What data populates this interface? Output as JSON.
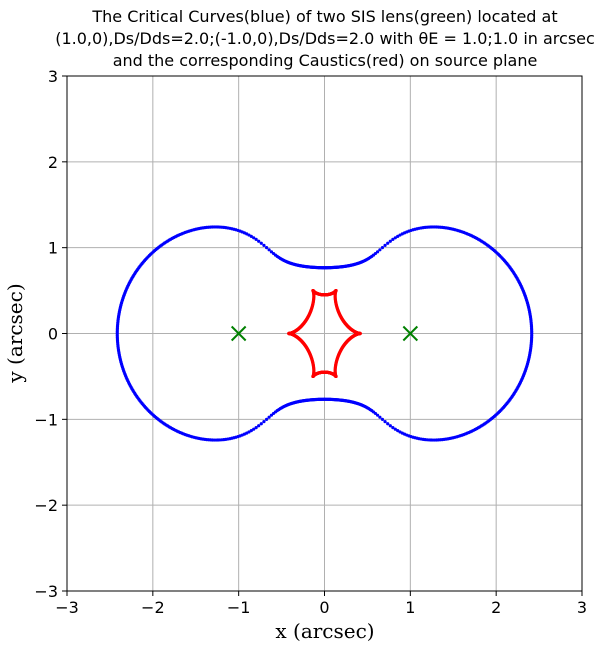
{
  "chart_data": {
    "type": "scatter",
    "title_lines": [
      "The Critical Curves(blue) of two SIS lens(green) located at",
      "(1.0,0),Ds/Dds=2.0;(-1.0,0),Ds/Dds=2.0 with θE = 1.0;1.0 in arcsec",
      "and the corresponding Caustics(red) on source plane"
    ],
    "xlabel": "x (arcsec)",
    "ylabel": "y (arcsec)",
    "xlim": [
      -3,
      3
    ],
    "ylim": [
      -3,
      3
    ],
    "xticks": [
      -3,
      -2,
      -1,
      0,
      1,
      2,
      3
    ],
    "yticks": [
      -3,
      -2,
      -1,
      0,
      1,
      2,
      3
    ],
    "xtick_labels": [
      "−3",
      "−2",
      "−1",
      "0",
      "1",
      "2",
      "3"
    ],
    "ytick_labels": [
      "−3",
      "−2",
      "−1",
      "0",
      "1",
      "2",
      "3"
    ],
    "grid": true,
    "lenses": [
      {
        "x": 1.0,
        "y": 0.0,
        "ds_dds": 2.0,
        "theta_e": 1.0
      },
      {
        "x": -1.0,
        "y": 0.0,
        "ds_dds": 2.0,
        "theta_e": 1.0
      }
    ],
    "colors": {
      "critical_curve": "#0000ff",
      "caustic": "#ff0000",
      "lens": "#008000",
      "grid": "#b0b0b0"
    }
  }
}
